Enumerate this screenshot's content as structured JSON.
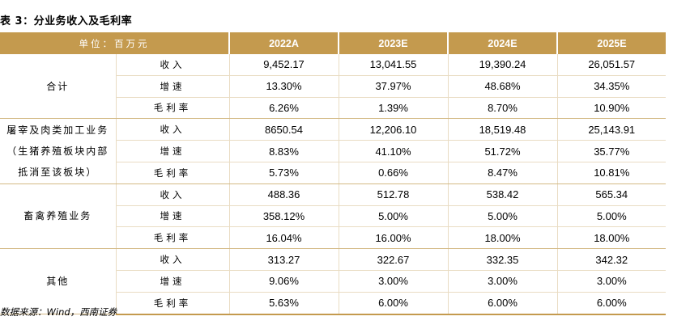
{
  "title": "表 3：分业务收入及毛利率",
  "header": {
    "unit": "单位：百万元",
    "years": [
      "2022A",
      "2023E",
      "2024E",
      "2025E"
    ]
  },
  "segments": [
    {
      "name": "合计",
      "rows": [
        {
          "metric": "收入",
          "values": [
            "9,452.17",
            "13,041.55",
            "19,390.24",
            "26,051.57"
          ]
        },
        {
          "metric": "增速",
          "values": [
            "13.30%",
            "37.97%",
            "48.68%",
            "34.35%"
          ]
        },
        {
          "metric": "毛利率",
          "values": [
            "6.26%",
            "1.39%",
            "8.70%",
            "10.90%"
          ]
        }
      ]
    },
    {
      "name": "屠宰及肉类加工业务（生猪养殖板块内部抵消至该板块）",
      "rows": [
        {
          "metric": "收入",
          "values": [
            "8650.54",
            "12,206.10",
            "18,519.48",
            "25,143.91"
          ]
        },
        {
          "metric": "增速",
          "values": [
            "8.83%",
            "41.10%",
            "51.72%",
            "35.77%"
          ]
        },
        {
          "metric": "毛利率",
          "values": [
            "5.73%",
            "0.66%",
            "8.47%",
            "10.81%"
          ]
        }
      ]
    },
    {
      "name": "畜禽养殖业务",
      "rows": [
        {
          "metric": "收入",
          "values": [
            "488.36",
            "512.78",
            "538.42",
            "565.34"
          ]
        },
        {
          "metric": "增速",
          "values": [
            "358.12%",
            "5.00%",
            "5.00%",
            "5.00%"
          ]
        },
        {
          "metric": "毛利率",
          "values": [
            "16.04%",
            "16.00%",
            "18.00%",
            "18.00%"
          ]
        }
      ]
    },
    {
      "name": "其他",
      "rows": [
        {
          "metric": "收入",
          "values": [
            "313.27",
            "322.67",
            "332.35",
            "342.32"
          ]
        },
        {
          "metric": "增速",
          "values": [
            "9.06%",
            "3.00%",
            "3.00%",
            "3.00%"
          ]
        },
        {
          "metric": "毛利率",
          "values": [
            "5.63%",
            "6.00%",
            "6.00%",
            "6.00%"
          ]
        }
      ]
    }
  ],
  "source": "数据来源：Wind，西南证券"
}
